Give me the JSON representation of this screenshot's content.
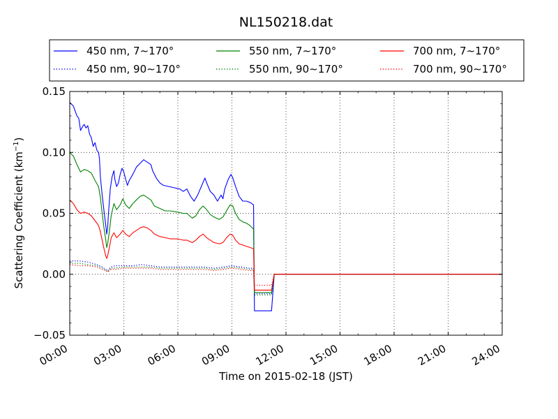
{
  "chart_data": {
    "type": "line",
    "title": "NL150218.dat",
    "xlabel": "Time on 2015-02-18 (JST)",
    "ylabel_prefix": "Scattering Coefficient (km",
    "ylabel_exp": "−1",
    "ylabel_suffix": ")",
    "xlim": [
      0,
      24
    ],
    "ylim": [
      -0.05,
      0.15
    ],
    "x_ticks": [
      0,
      3,
      6,
      9,
      12,
      15,
      18,
      21,
      24
    ],
    "x_tick_labels": [
      "00:00",
      "03:00",
      "06:00",
      "09:00",
      "12:00",
      "15:00",
      "18:00",
      "21:00",
      "24:00"
    ],
    "y_ticks": [
      -0.05,
      0.0,
      0.05,
      0.1,
      0.15
    ],
    "y_tick_labels": [
      "−0.05",
      "0.00",
      "0.05",
      "0.10",
      "0.15"
    ],
    "grid": true,
    "legend_position": "top",
    "series": [
      {
        "name": "450 nm, 7∼170°",
        "color": "#0000ff",
        "style": "solid",
        "points": [
          [
            0.0,
            0.141
          ],
          [
            0.2,
            0.138
          ],
          [
            0.4,
            0.13
          ],
          [
            0.5,
            0.128
          ],
          [
            0.6,
            0.118
          ],
          [
            0.7,
            0.121
          ],
          [
            0.8,
            0.123
          ],
          [
            0.9,
            0.12
          ],
          [
            1.0,
            0.122
          ],
          [
            1.1,
            0.115
          ],
          [
            1.2,
            0.112
          ],
          [
            1.3,
            0.105
          ],
          [
            1.4,
            0.108
          ],
          [
            1.5,
            0.102
          ],
          [
            1.6,
            0.1
          ],
          [
            1.65,
            0.095
          ],
          [
            1.7,
            0.08
          ],
          [
            1.8,
            0.065
          ],
          [
            1.9,
            0.052
          ],
          [
            2.0,
            0.04
          ],
          [
            2.05,
            0.033
          ],
          [
            2.1,
            0.038
          ],
          [
            2.15,
            0.05
          ],
          [
            2.25,
            0.07
          ],
          [
            2.35,
            0.08
          ],
          [
            2.45,
            0.085
          ],
          [
            2.5,
            0.078
          ],
          [
            2.6,
            0.072
          ],
          [
            2.7,
            0.075
          ],
          [
            2.8,
            0.082
          ],
          [
            2.9,
            0.087
          ],
          [
            3.0,
            0.084
          ],
          [
            3.1,
            0.078
          ],
          [
            3.2,
            0.073
          ],
          [
            3.3,
            0.077
          ],
          [
            3.5,
            0.082
          ],
          [
            3.7,
            0.088
          ],
          [
            3.9,
            0.091
          ],
          [
            4.1,
            0.094
          ],
          [
            4.3,
            0.092
          ],
          [
            4.5,
            0.09
          ],
          [
            4.6,
            0.085
          ],
          [
            4.8,
            0.079
          ],
          [
            5.0,
            0.075
          ],
          [
            5.2,
            0.073
          ],
          [
            5.5,
            0.072
          ],
          [
            5.8,
            0.071
          ],
          [
            6.1,
            0.07
          ],
          [
            6.3,
            0.068
          ],
          [
            6.5,
            0.07
          ],
          [
            6.7,
            0.064
          ],
          [
            6.9,
            0.06
          ],
          [
            7.1,
            0.065
          ],
          [
            7.3,
            0.072
          ],
          [
            7.5,
            0.079
          ],
          [
            7.6,
            0.075
          ],
          [
            7.8,
            0.068
          ],
          [
            8.0,
            0.065
          ],
          [
            8.2,
            0.06
          ],
          [
            8.4,
            0.065
          ],
          [
            8.5,
            0.062
          ],
          [
            8.6,
            0.07
          ],
          [
            8.8,
            0.078
          ],
          [
            8.95,
            0.082
          ],
          [
            9.05,
            0.079
          ],
          [
            9.2,
            0.072
          ],
          [
            9.4,
            0.064
          ],
          [
            9.6,
            0.06
          ],
          [
            9.8,
            0.06
          ],
          [
            10.0,
            0.059
          ],
          [
            10.2,
            0.057
          ],
          [
            10.25,
            -0.03
          ],
          [
            11.2,
            -0.03
          ],
          [
            11.35,
            0.0
          ],
          [
            24.0,
            0.0
          ]
        ]
      },
      {
        "name": "450 nm, 90∼170°",
        "color": "#0000ff",
        "style": "dotted",
        "points": [
          [
            0.0,
            0.011
          ],
          [
            0.5,
            0.011
          ],
          [
            1.0,
            0.01
          ],
          [
            1.5,
            0.008
          ],
          [
            1.8,
            0.006
          ],
          [
            2.0,
            0.004
          ],
          [
            2.1,
            0.003
          ],
          [
            2.3,
            0.006
          ],
          [
            2.5,
            0.007
          ],
          [
            3.0,
            0.007
          ],
          [
            3.5,
            0.007
          ],
          [
            4.0,
            0.008
          ],
          [
            4.5,
            0.007
          ],
          [
            5.0,
            0.006
          ],
          [
            5.5,
            0.006
          ],
          [
            6.0,
            0.006
          ],
          [
            6.5,
            0.006
          ],
          [
            7.0,
            0.006
          ],
          [
            7.5,
            0.006
          ],
          [
            8.0,
            0.005
          ],
          [
            8.5,
            0.006
          ],
          [
            9.0,
            0.007
          ],
          [
            9.5,
            0.006
          ],
          [
            10.0,
            0.005
          ],
          [
            10.2,
            0.005
          ],
          [
            10.25,
            -0.016
          ],
          [
            11.2,
            -0.016
          ],
          [
            11.35,
            0.0
          ],
          [
            24.0,
            0.0
          ]
        ]
      },
      {
        "name": "550 nm, 7∼170°",
        "color": "#008000",
        "style": "solid",
        "points": [
          [
            0.0,
            0.1
          ],
          [
            0.2,
            0.097
          ],
          [
            0.4,
            0.09
          ],
          [
            0.6,
            0.084
          ],
          [
            0.8,
            0.086
          ],
          [
            1.0,
            0.085
          ],
          [
            1.2,
            0.083
          ],
          [
            1.4,
            0.077
          ],
          [
            1.6,
            0.072
          ],
          [
            1.7,
            0.063
          ],
          [
            1.8,
            0.05
          ],
          [
            1.9,
            0.038
          ],
          [
            2.0,
            0.028
          ],
          [
            2.05,
            0.022
          ],
          [
            2.1,
            0.025
          ],
          [
            2.2,
            0.035
          ],
          [
            2.3,
            0.048
          ],
          [
            2.45,
            0.058
          ],
          [
            2.6,
            0.053
          ],
          [
            2.8,
            0.057
          ],
          [
            2.95,
            0.062
          ],
          [
            3.1,
            0.057
          ],
          [
            3.3,
            0.054
          ],
          [
            3.5,
            0.058
          ],
          [
            3.7,
            0.061
          ],
          [
            3.9,
            0.064
          ],
          [
            4.1,
            0.065
          ],
          [
            4.3,
            0.063
          ],
          [
            4.5,
            0.061
          ],
          [
            4.7,
            0.056
          ],
          [
            5.0,
            0.054
          ],
          [
            5.3,
            0.052
          ],
          [
            5.6,
            0.052
          ],
          [
            6.0,
            0.051
          ],
          [
            6.3,
            0.05
          ],
          [
            6.5,
            0.05
          ],
          [
            6.8,
            0.046
          ],
          [
            7.0,
            0.048
          ],
          [
            7.2,
            0.053
          ],
          [
            7.4,
            0.056
          ],
          [
            7.6,
            0.053
          ],
          [
            7.8,
            0.049
          ],
          [
            8.0,
            0.047
          ],
          [
            8.3,
            0.045
          ],
          [
            8.5,
            0.047
          ],
          [
            8.7,
            0.052
          ],
          [
            8.9,
            0.057
          ],
          [
            9.05,
            0.056
          ],
          [
            9.2,
            0.05
          ],
          [
            9.4,
            0.045
          ],
          [
            9.6,
            0.043
          ],
          [
            9.8,
            0.042
          ],
          [
            10.0,
            0.04
          ],
          [
            10.2,
            0.037
          ],
          [
            10.25,
            -0.015
          ],
          [
            11.2,
            -0.015
          ],
          [
            11.35,
            0.0
          ],
          [
            24.0,
            0.0
          ]
        ]
      },
      {
        "name": "550 nm, 90∼170°",
        "color": "#008000",
        "style": "dotted",
        "points": [
          [
            0.0,
            0.009
          ],
          [
            0.5,
            0.009
          ],
          [
            1.0,
            0.008
          ],
          [
            1.5,
            0.007
          ],
          [
            1.8,
            0.005
          ],
          [
            2.0,
            0.003
          ],
          [
            2.1,
            0.002
          ],
          [
            2.3,
            0.005
          ],
          [
            2.5,
            0.005
          ],
          [
            3.0,
            0.006
          ],
          [
            3.5,
            0.006
          ],
          [
            4.0,
            0.006
          ],
          [
            4.5,
            0.006
          ],
          [
            5.0,
            0.005
          ],
          [
            5.5,
            0.005
          ],
          [
            6.0,
            0.005
          ],
          [
            6.5,
            0.005
          ],
          [
            7.0,
            0.005
          ],
          [
            7.5,
            0.005
          ],
          [
            8.0,
            0.004
          ],
          [
            8.5,
            0.005
          ],
          [
            9.0,
            0.006
          ],
          [
            9.5,
            0.005
          ],
          [
            10.0,
            0.004
          ],
          [
            10.2,
            0.004
          ],
          [
            10.25,
            -0.017
          ],
          [
            11.2,
            -0.017
          ],
          [
            11.35,
            0.0
          ],
          [
            24.0,
            0.0
          ]
        ]
      },
      {
        "name": "700 nm, 7∼170°",
        "color": "#ff0000",
        "style": "solid",
        "points": [
          [
            0.0,
            0.061
          ],
          [
            0.2,
            0.058
          ],
          [
            0.4,
            0.053
          ],
          [
            0.6,
            0.05
          ],
          [
            0.8,
            0.051
          ],
          [
            1.0,
            0.05
          ],
          [
            1.2,
            0.048
          ],
          [
            1.4,
            0.044
          ],
          [
            1.6,
            0.04
          ],
          [
            1.7,
            0.035
          ],
          [
            1.8,
            0.028
          ],
          [
            1.9,
            0.021
          ],
          [
            2.0,
            0.015
          ],
          [
            2.05,
            0.013
          ],
          [
            2.1,
            0.015
          ],
          [
            2.2,
            0.022
          ],
          [
            2.3,
            0.03
          ],
          [
            2.45,
            0.034
          ],
          [
            2.6,
            0.03
          ],
          [
            2.8,
            0.033
          ],
          [
            2.95,
            0.036
          ],
          [
            3.1,
            0.033
          ],
          [
            3.3,
            0.031
          ],
          [
            3.5,
            0.034
          ],
          [
            3.7,
            0.036
          ],
          [
            3.9,
            0.038
          ],
          [
            4.1,
            0.039
          ],
          [
            4.3,
            0.038
          ],
          [
            4.5,
            0.036
          ],
          [
            4.7,
            0.033
          ],
          [
            5.0,
            0.031
          ],
          [
            5.3,
            0.03
          ],
          [
            5.6,
            0.029
          ],
          [
            6.0,
            0.029
          ],
          [
            6.3,
            0.028
          ],
          [
            6.5,
            0.028
          ],
          [
            6.8,
            0.026
          ],
          [
            7.0,
            0.028
          ],
          [
            7.2,
            0.031
          ],
          [
            7.4,
            0.033
          ],
          [
            7.6,
            0.03
          ],
          [
            7.8,
            0.028
          ],
          [
            8.0,
            0.026
          ],
          [
            8.3,
            0.025
          ],
          [
            8.5,
            0.026
          ],
          [
            8.7,
            0.03
          ],
          [
            8.9,
            0.033
          ],
          [
            9.05,
            0.032
          ],
          [
            9.2,
            0.028
          ],
          [
            9.4,
            0.025
          ],
          [
            9.6,
            0.024
          ],
          [
            9.8,
            0.023
          ],
          [
            10.0,
            0.022
          ],
          [
            10.2,
            0.021
          ],
          [
            10.25,
            -0.013
          ],
          [
            11.2,
            -0.013
          ],
          [
            11.35,
            0.0
          ],
          [
            24.0,
            0.0
          ]
        ]
      },
      {
        "name": "700 nm, 90∼170°",
        "color": "#ff0000",
        "style": "dotted",
        "points": [
          [
            0.0,
            0.008
          ],
          [
            0.5,
            0.007
          ],
          [
            1.0,
            0.007
          ],
          [
            1.5,
            0.006
          ],
          [
            1.8,
            0.004
          ],
          [
            2.0,
            0.003
          ],
          [
            2.1,
            0.002
          ],
          [
            2.3,
            0.004
          ],
          [
            2.5,
            0.004
          ],
          [
            3.0,
            0.005
          ],
          [
            3.5,
            0.005
          ],
          [
            4.0,
            0.005
          ],
          [
            4.5,
            0.005
          ],
          [
            5.0,
            0.004
          ],
          [
            5.5,
            0.004
          ],
          [
            6.0,
            0.004
          ],
          [
            6.5,
            0.004
          ],
          [
            7.0,
            0.004
          ],
          [
            7.5,
            0.004
          ],
          [
            8.0,
            0.003
          ],
          [
            8.5,
            0.004
          ],
          [
            9.0,
            0.005
          ],
          [
            9.5,
            0.004
          ],
          [
            10.0,
            0.003
          ],
          [
            10.2,
            0.003
          ],
          [
            10.25,
            -0.009
          ],
          [
            11.2,
            -0.009
          ],
          [
            11.35,
            0.0
          ],
          [
            24.0,
            0.0
          ]
        ]
      }
    ]
  }
}
